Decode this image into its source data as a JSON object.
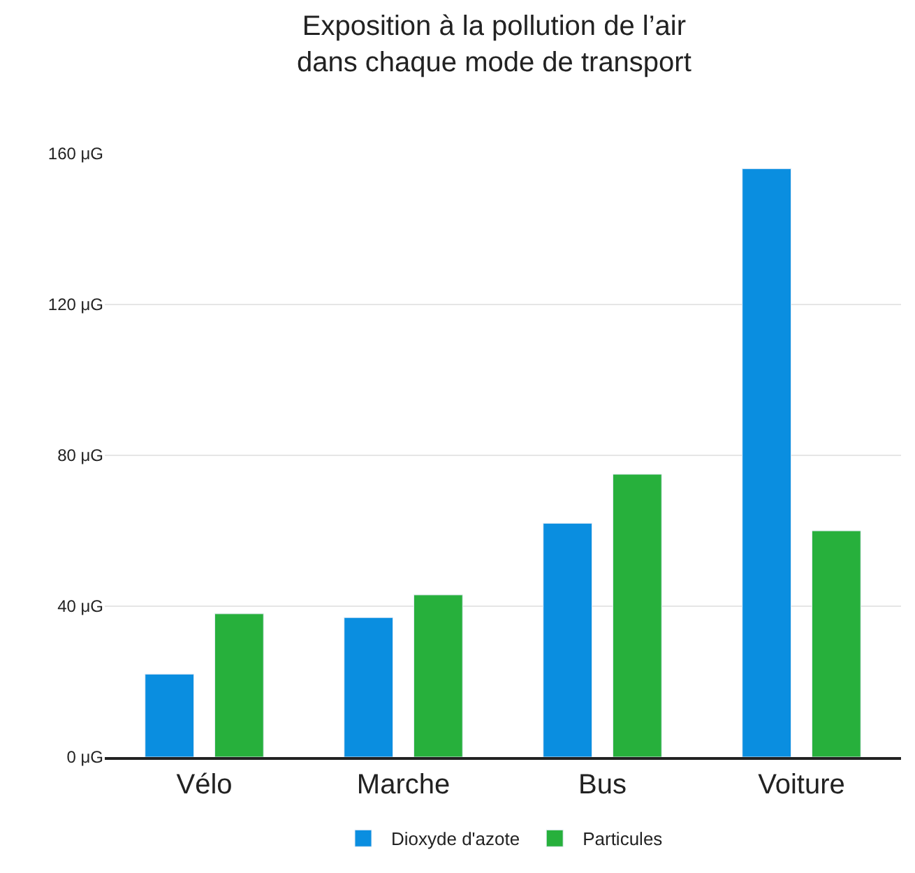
{
  "chart_data": {
    "type": "bar",
    "title": "Exposition à la pollution de l’air\ndans chaque mode de transport",
    "categories": [
      "Vélo",
      "Marche",
      "Bus",
      "Voiture"
    ],
    "series": [
      {
        "name": "Dioxyde d'azote",
        "color": "#0a8ee0",
        "values": [
          22,
          37,
          62,
          156
        ]
      },
      {
        "name": "Particules",
        "color": "#27b03c",
        "values": [
          38,
          43,
          75,
          60
        ]
      }
    ],
    "ylim": [
      0,
      160
    ],
    "yticks": [
      {
        "value": 0,
        "label": "0 μG"
      },
      {
        "value": 40,
        "label": "40 μG"
      },
      {
        "value": 80,
        "label": "80 μG"
      },
      {
        "value": 120,
        "label": "120 μG"
      },
      {
        "value": 160,
        "label": "160 μG"
      }
    ],
    "grid": "y",
    "legend": "bottom"
  }
}
